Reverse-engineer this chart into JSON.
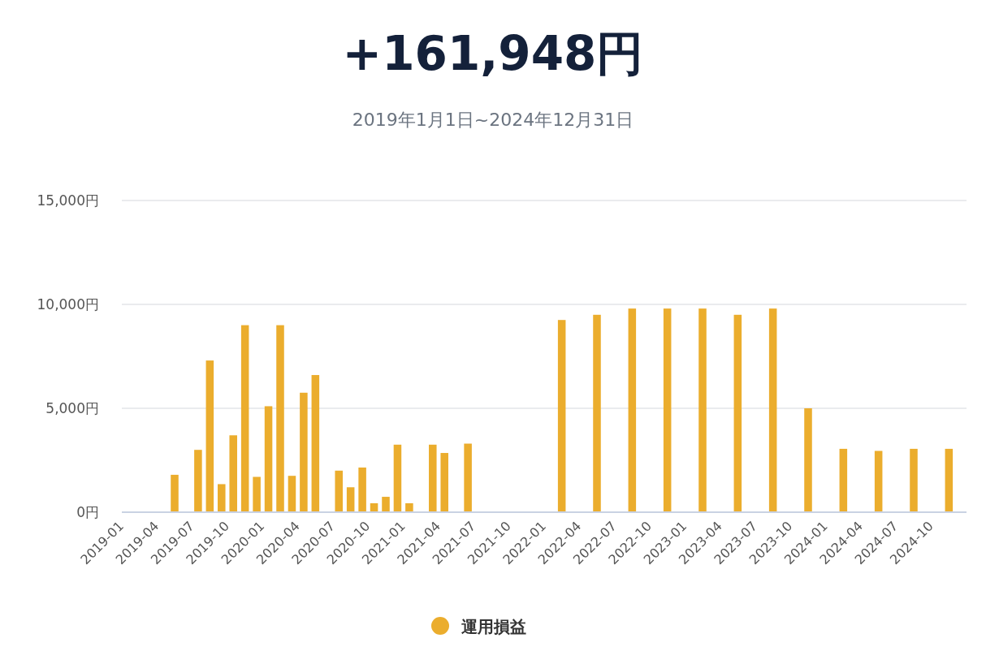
{
  "chart_data": {
    "type": "bar",
    "title": "+161,948円",
    "subtitle": "2019年1月1日~2024年12月31日",
    "categories": [
      "2019-01",
      null,
      null,
      "2019-04",
      null,
      null,
      "2019-07",
      null,
      null,
      "2019-10",
      null,
      null,
      "2020-01",
      null,
      null,
      "2020-04",
      null,
      null,
      "2020-07",
      null,
      null,
      "2020-10",
      null,
      null,
      "2021-01",
      null,
      null,
      "2021-04",
      null,
      null,
      "2021-07",
      null,
      null,
      "2021-10",
      null,
      null,
      "2022-01",
      null,
      null,
      "2022-04",
      null,
      null,
      "2022-07",
      null,
      null,
      "2022-10",
      null,
      null,
      "2023-01",
      null,
      null,
      "2023-04",
      null,
      null,
      "2023-07",
      null,
      null,
      "2023-10",
      null,
      null,
      "2024-01",
      null,
      null,
      "2024-04",
      null,
      null,
      "2024-07",
      null,
      null,
      "2024-10",
      null,
      null
    ],
    "series": [
      {
        "name": "運用損益",
        "color": "#ebad2d",
        "values": [
          null,
          null,
          null,
          null,
          1800,
          null,
          3000,
          7300,
          1350,
          3700,
          9000,
          1700,
          5100,
          9000,
          1750,
          5750,
          6600,
          null,
          2000,
          1200,
          2150,
          430,
          740,
          3250,
          430,
          null,
          3250,
          2850,
          null,
          3300,
          null,
          null,
          null,
          null,
          null,
          null,
          null,
          9250,
          null,
          null,
          9500,
          null,
          null,
          9800,
          null,
          null,
          9800,
          null,
          null,
          9800,
          null,
          null,
          9500,
          null,
          null,
          9800,
          null,
          null,
          5000,
          null,
          null,
          3050,
          null,
          null,
          2950,
          null,
          null,
          3050,
          null,
          null,
          3050,
          null
        ]
      }
    ],
    "ylim": [
      0,
      15000
    ],
    "yticks": [
      {
        "value": 0,
        "label": "0円"
      },
      {
        "value": 5000,
        "label": "5,000円"
      },
      {
        "value": 10000,
        "label": "10,000円"
      },
      {
        "value": 15000,
        "label": "15,000円"
      }
    ],
    "grid": "y",
    "legend": "bottom"
  }
}
